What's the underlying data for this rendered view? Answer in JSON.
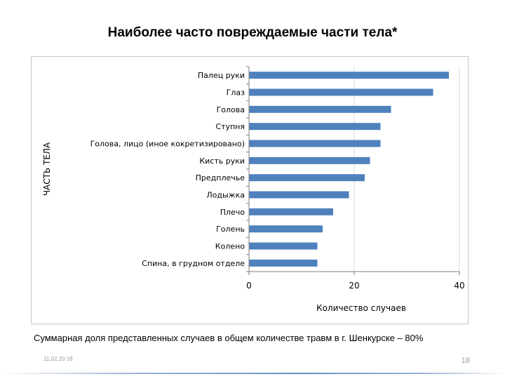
{
  "title": "Наиболее часто повреждаемые части тела*",
  "footnote": "Суммарная доля представленных случаев в общем количестве травм в  г. Шенкурске – 80%",
  "footer": {
    "date": "11.02.20 18",
    "page": "18"
  },
  "colors": {
    "bar": "#4f81bd",
    "axis": "#7f7f7f",
    "grid": "#d9d9d9"
  },
  "chart_data": {
    "type": "bar",
    "orientation": "horizontal",
    "title": "Наиболее часто повреждаемые части тела*",
    "xlabel": "Количество случаев",
    "ylabel": "ЧАСТЬ ТЕЛА",
    "xlim": [
      0,
      40
    ],
    "xticks": [
      "0",
      "20",
      "40"
    ],
    "grid": "vertical",
    "categories": [
      "Палец руки",
      "Глаз",
      "Голова",
      "Ступня",
      "Голова, лицо (иное кокретизировано)",
      "Кисть руки",
      "Предплечье",
      "Лодыжка",
      "Плечо",
      "Голень",
      "Колено",
      "Спина, в грудном отделе"
    ],
    "values": [
      38,
      35,
      27,
      25,
      25,
      23,
      22,
      19,
      16,
      14,
      13,
      13
    ]
  }
}
